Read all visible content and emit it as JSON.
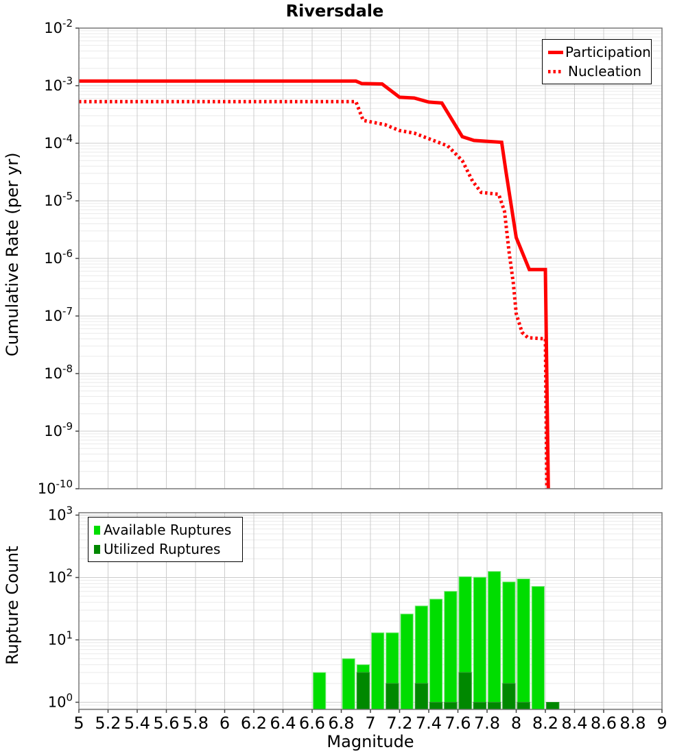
{
  "title": "Riversdale",
  "xlabel": "Magnitude",
  "xticks": [
    "5",
    "5.2",
    "5.4",
    "5.6",
    "5.8",
    "6",
    "6.2",
    "6.4",
    "6.6",
    "6.8",
    "7",
    "7.2",
    "7.4",
    "7.6",
    "7.8",
    "8",
    "8.2",
    "8.4",
    "8.6",
    "8.8",
    "9"
  ],
  "top_panel": {
    "ylabel": "Cumulative Rate (per yr)",
    "ytick_exponents": [
      -2,
      -3,
      -4,
      -5,
      -6,
      -7,
      -8,
      -9,
      -10
    ]
  },
  "bottom_panel": {
    "ylabel": "Rupture Count",
    "ytick_exponents": [
      3,
      2,
      1,
      0
    ]
  },
  "legend_top": {
    "items": [
      {
        "label": "Participation",
        "style": "solid"
      },
      {
        "label": "Nucleation",
        "style": "dotted"
      }
    ]
  },
  "legend_bottom": {
    "items": [
      {
        "label": "Available Ruptures",
        "color": "#00dd00"
      },
      {
        "label": "Utilized Ruptures",
        "color": "#008800"
      }
    ]
  },
  "colors": {
    "line_red": "#ff0000",
    "available_green": "#00dd00",
    "utilized_green": "#008800",
    "grid_major": "#cccccc",
    "grid_minor": "#eaeaea",
    "plot_border": "#777777",
    "tick_mark": "#444444"
  },
  "chart_data": [
    {
      "type": "line",
      "title": "Riversdale",
      "xlabel": "Magnitude",
      "ylabel": "Cumulative Rate (per yr)",
      "xlim": [
        5,
        9
      ],
      "ylim": [
        1e-10,
        0.01
      ],
      "yscale": "log",
      "grid": true,
      "legend_position": "top-right",
      "series": [
        {
          "name": "Participation",
          "style": "solid",
          "color": "#ff0000",
          "points": [
            [
              5.0,
              0.0012
            ],
            [
              6.9,
              0.0012
            ],
            [
              6.94,
              0.00109
            ],
            [
              7.08,
              0.00107
            ],
            [
              7.2,
              0.00063
            ],
            [
              7.3,
              0.00061
            ],
            [
              7.4,
              0.00052
            ],
            [
              7.49,
              0.0005
            ],
            [
              7.63,
              0.00013
            ],
            [
              7.71,
              0.000112
            ],
            [
              7.9,
              0.000104
            ],
            [
              7.93,
              3.2e-05
            ],
            [
              8.0,
              2.3e-06
            ],
            [
              8.09,
              6.4e-07
            ],
            [
              8.2,
              6.4e-07
            ],
            [
              8.22,
              1e-10
            ]
          ]
        },
        {
          "name": "Nucleation",
          "style": "dotted",
          "color": "#ff0000",
          "points": [
            [
              5.0,
              0.00053
            ],
            [
              6.9,
              0.00053
            ],
            [
              6.95,
              0.00025
            ],
            [
              7.1,
              0.00021
            ],
            [
              7.2,
              0.000166
            ],
            [
              7.3,
              0.00015
            ],
            [
              7.4,
              0.00012
            ],
            [
              7.53,
              9e-05
            ],
            [
              7.63,
              5e-05
            ],
            [
              7.7,
              2.2e-05
            ],
            [
              7.76,
              1.4e-05
            ],
            [
              7.88,
              1.3e-05
            ],
            [
              7.92,
              6.5e-06
            ],
            [
              7.95,
              1.35e-06
            ],
            [
              7.98,
              3.7e-07
            ],
            [
              8.0,
              1.1e-07
            ],
            [
              8.04,
              5.2e-08
            ],
            [
              8.08,
              4.2e-08
            ],
            [
              8.2,
              4e-08
            ],
            [
              8.21,
              1e-10
            ]
          ]
        }
      ]
    },
    {
      "type": "bar",
      "ylabel": "Rupture Count",
      "xlim": [
        5,
        9
      ],
      "yscale": "log",
      "ylim": [
        1,
        1000
      ],
      "bin_width": 0.1,
      "legend_position": "top-left",
      "series": [
        {
          "name": "Available Ruptures",
          "color": "#00dd00",
          "bins": [
            [
              6.6,
              3
            ],
            [
              6.8,
              5
            ],
            [
              6.9,
              4
            ],
            [
              7.0,
              13
            ],
            [
              7.1,
              13
            ],
            [
              7.2,
              26
            ],
            [
              7.3,
              35
            ],
            [
              7.4,
              45
            ],
            [
              7.5,
              60
            ],
            [
              7.6,
              103
            ],
            [
              7.7,
              101
            ],
            [
              7.8,
              125
            ],
            [
              7.9,
              85
            ],
            [
              8.0,
              95
            ],
            [
              8.1,
              72
            ],
            [
              8.2,
              1
            ]
          ]
        },
        {
          "name": "Utilized Ruptures",
          "color": "#008800",
          "bins": [
            [
              6.9,
              3
            ],
            [
              7.1,
              2
            ],
            [
              7.3,
              2
            ],
            [
              7.4,
              1
            ],
            [
              7.5,
              1
            ],
            [
              7.6,
              3
            ],
            [
              7.7,
              1
            ],
            [
              7.8,
              1
            ],
            [
              7.9,
              2
            ],
            [
              8.0,
              1
            ],
            [
              8.2,
              1
            ]
          ]
        }
      ]
    }
  ]
}
